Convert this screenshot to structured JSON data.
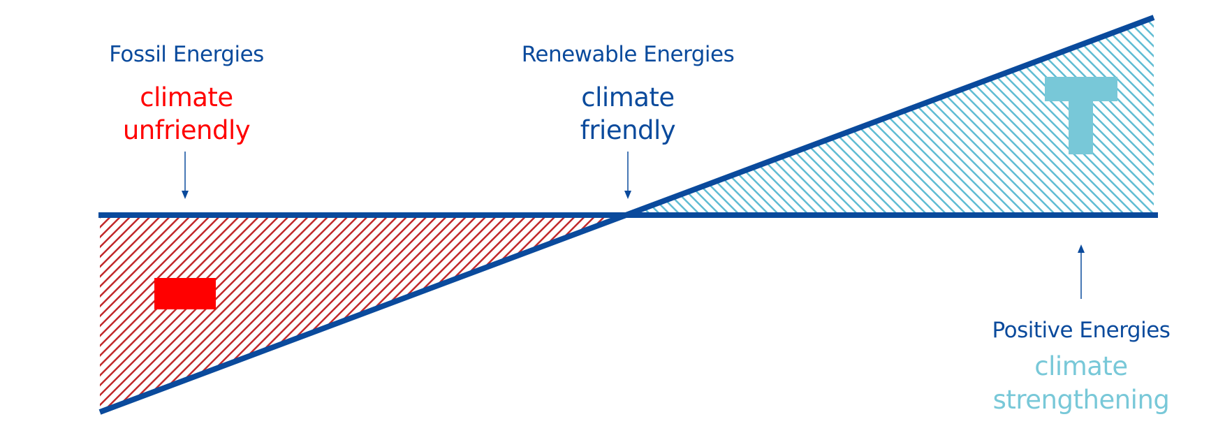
{
  "colors": {
    "line": "#0a4a9c",
    "negative": "#ff0000",
    "negative_hatch": "#c0282a",
    "positive": "#78c8d8",
    "positive_hatch": "#5fbcd3",
    "category_text": "#0a4a9c"
  },
  "labels": {
    "fossil": {
      "category": "Fossil Energies",
      "rating_line1": "climate",
      "rating_line2": "unfriendly",
      "rating_color": "#ff0000"
    },
    "renewable": {
      "category": "Renewable Energies",
      "rating_line1": "climate",
      "rating_line2": "friendly",
      "rating_color": "#0a4a9c"
    },
    "positive": {
      "category": "Positive Energies",
      "rating_line1": "climate",
      "rating_line2": "strengthening",
      "rating_color": "#78c8d8"
    }
  },
  "icons": {
    "minus": "minus-icon",
    "plus": "plus-icon"
  }
}
